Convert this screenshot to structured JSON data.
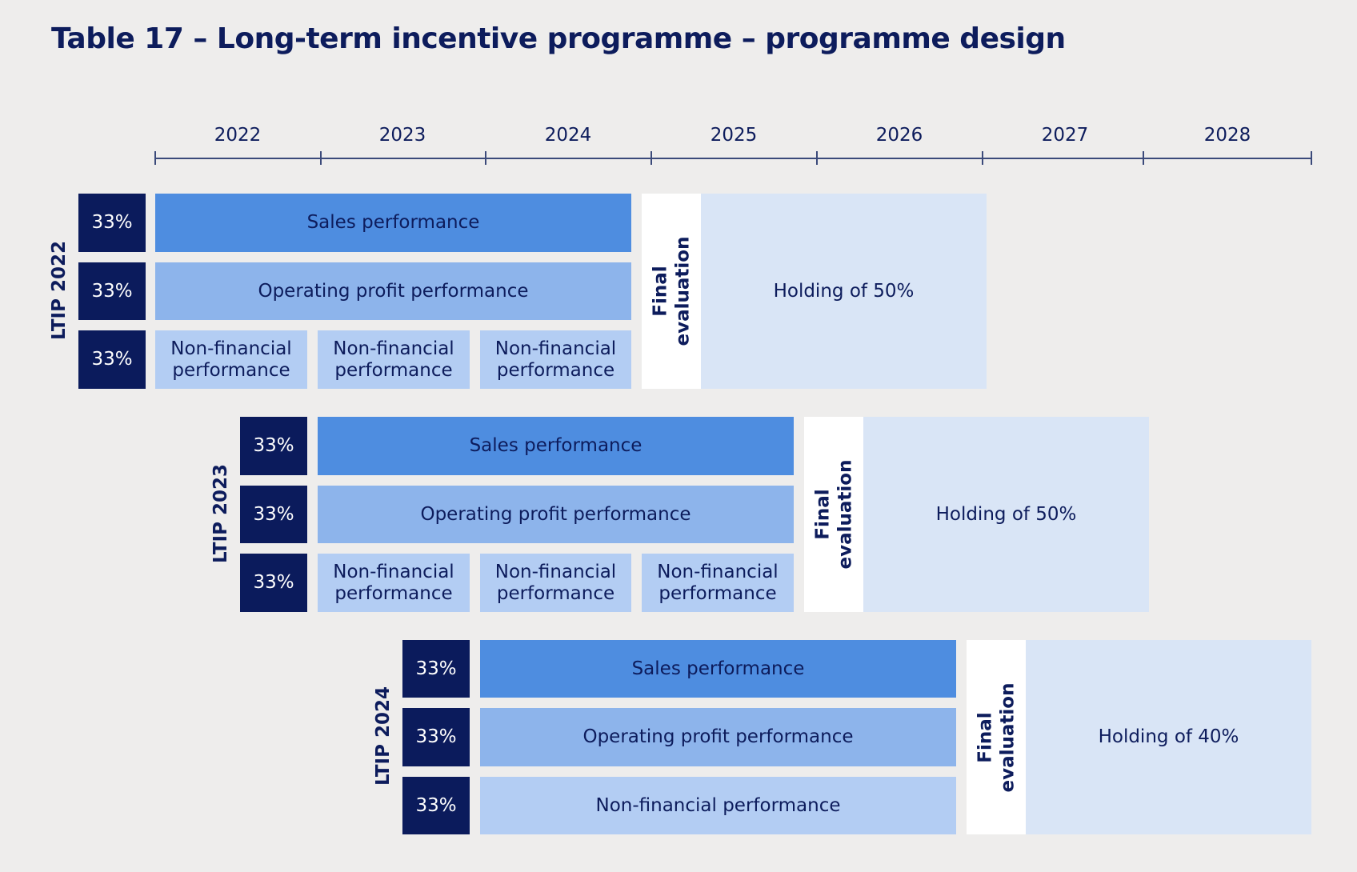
{
  "title": "Table 17 – Long-term incentive programme – programme design",
  "years": [
    "2022",
    "2023",
    "2024",
    "2025",
    "2026",
    "2027",
    "2028"
  ],
  "programmes": [
    {
      "label": "LTIP 2022",
      "weights": [
        "33%",
        "33%",
        "33%"
      ],
      "sales": "Sales performance",
      "operating_profit": "Operating profit performance",
      "non_financial": [
        "Non-financial performance",
        "Non-financial performance",
        "Non-financial performance"
      ],
      "final_evaluation": "Final evaluation",
      "holding": "Holding of 50%"
    },
    {
      "label": "LTIP 2023",
      "weights": [
        "33%",
        "33%",
        "33%"
      ],
      "sales": "Sales performance",
      "operating_profit": "Operating profit performance",
      "non_financial": [
        "Non-financial performance",
        "Non-financial performance",
        "Non-financial performance"
      ],
      "final_evaluation": "Final evaluation",
      "holding": "Holding of 50%"
    },
    {
      "label": "LTIP 2024",
      "weights": [
        "33%",
        "33%",
        "33%"
      ],
      "sales": "Sales performance",
      "operating_profit": "Operating profit performance",
      "non_financial": [
        "Non-financial performance"
      ],
      "final_evaluation": "Final evaluation",
      "holding": "Holding of 40%"
    }
  ],
  "colors": {
    "navy": "#0b1b5c",
    "sales": "#4e8de0",
    "operating_profit": "#8db4eb",
    "non_financial": "#b3cdf3",
    "holding": "#d9e5f6",
    "background": "#eeedec"
  }
}
